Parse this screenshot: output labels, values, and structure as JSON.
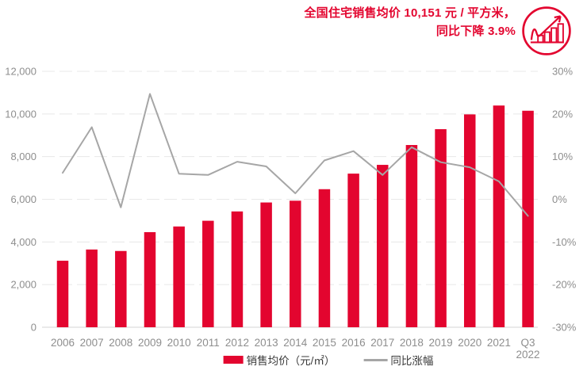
{
  "header": {
    "title_line1": "全国住宅销售均价 10,151 元 / 平方米，",
    "title_line2": "同比下降 3.9%",
    "icon": "growth-chart-icon"
  },
  "legend": {
    "bar_label": "销售均价（元/㎡）",
    "line_label": "同比涨幅"
  },
  "colors": {
    "accent_red": "#e3052f",
    "line_gray": "#a6a6a6",
    "grid": "#e8e8e8",
    "baseline": "#d4d4d4",
    "axis_text": "#8e8e8e",
    "legend_text": "#3a3a3a"
  },
  "chart_data": {
    "type": "bar+line",
    "title": "全国住宅销售均价 10,151 元 / 平方米，同比下降 3.9%",
    "categories": [
      "2006",
      "2007",
      "2008",
      "2009",
      "2010",
      "2011",
      "2012",
      "2013",
      "2014",
      "2015",
      "2016",
      "2017",
      "2018",
      "2019",
      "2020",
      "2021",
      "Q3\n2022"
    ],
    "series": [
      {
        "name": "销售均价（元/㎡）",
        "type": "bar",
        "axis": "left",
        "values": [
          3119,
          3645,
          3576,
          4459,
          4725,
          4993,
          5430,
          5850,
          5933,
          6473,
          7203,
          7614,
          8544,
          9287,
          9980,
          10396,
          10151
        ]
      },
      {
        "name": "同比涨幅",
        "type": "line",
        "axis": "right",
        "values": [
          6.2,
          16.9,
          -1.9,
          24.7,
          6.0,
          5.7,
          8.8,
          7.7,
          1.4,
          9.1,
          11.3,
          5.7,
          12.2,
          8.7,
          7.5,
          4.2,
          -3.9
        ]
      }
    ],
    "left_axis": {
      "min": 0,
      "max": 12000,
      "tick_step": 2000,
      "tick_labels": [
        "0",
        "2,000",
        "4,000",
        "6,000",
        "8,000",
        "10,000",
        "12,000"
      ]
    },
    "right_axis": {
      "min": -30,
      "max": 30,
      "tick_step": 10,
      "tick_labels": [
        "-30%",
        "-20%",
        "-10%",
        "0%",
        "10%",
        "20%",
        "30%"
      ]
    },
    "grid": "horizontal-dashed",
    "legend_position": "bottom"
  }
}
